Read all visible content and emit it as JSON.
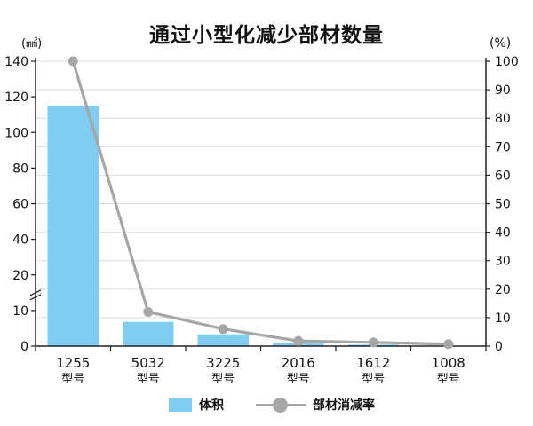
{
  "chart_data": {
    "type": "bar",
    "title": "通过小型化减少部材数量",
    "categories": [
      "1255",
      "5032",
      "3225",
      "2016",
      "1612",
      "1008"
    ],
    "category_sublabel": "型号",
    "left_axis": {
      "unit_label": "(㎣)",
      "range": [
        0,
        140
      ],
      "ticks": [
        "140",
        "120",
        "100",
        "80",
        "60",
        "40",
        "20",
        "10",
        "0"
      ],
      "broken": true
    },
    "right_axis": {
      "unit_label": "(%)",
      "range": [
        0,
        100
      ],
      "ticks": [
        "100",
        "90",
        "80",
        "70",
        "60",
        "50",
        "40",
        "30",
        "20",
        "10",
        "0"
      ]
    },
    "series": [
      {
        "name": "体积",
        "kind": "bar",
        "axis": "left",
        "color": "#7fcdf0",
        "values": [
          115,
          6.8,
          3.3,
          0.8,
          0.4,
          0.1
        ]
      },
      {
        "name": "部材消减率",
        "kind": "line",
        "axis": "right",
        "color": "#a6a6a6",
        "values": [
          100,
          12,
          6,
          1.8,
          1.3,
          0.7
        ]
      }
    ],
    "grid": true,
    "legend": "bottom-center"
  }
}
